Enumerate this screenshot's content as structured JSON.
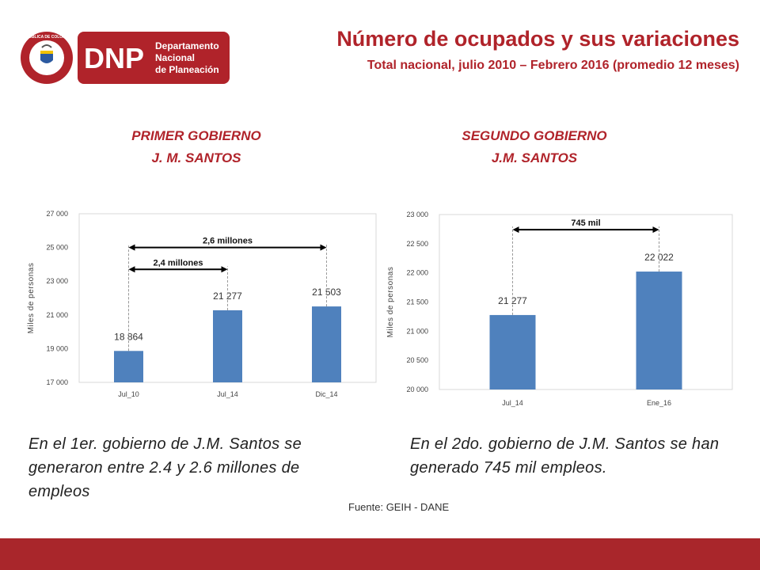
{
  "header": {
    "logo": {
      "seal_text": "REPUBLICA DE COLOMBIA",
      "brand": "DNP",
      "brand_line1": "Departamento",
      "brand_line2": "Nacional",
      "brand_line3": "de Planeación"
    },
    "title": "Número de ocupados y sus variaciones",
    "subtitle": "Total nacional, julio 2010 – Febrero 2016 (promedio 12 meses)"
  },
  "left": {
    "heading_line1": "PRIMER GOBIERNO",
    "heading_line2": "J. M. SANTOS",
    "note": "En el 1er. gobierno de J.M. Santos se generaron entre 2.4 y 2.6 millones de empleos"
  },
  "right": {
    "heading_line1": "SEGUNDO GOBIERNO",
    "heading_line2": "J.M. SANTOS",
    "note": "En el 2do. gobierno de J.M. Santos se han generado 745 mil empleos."
  },
  "source": "Fuente: GEIH - DANE",
  "colors": {
    "accent": "#b0232a",
    "bar": "#4f81bd",
    "footer": "#a9262b"
  },
  "chart_data": [
    {
      "type": "bar",
      "categories": [
        "Jul_10",
        "Jul_14",
        "Dic_14"
      ],
      "values": [
        18864,
        21277,
        21503
      ],
      "data_labels": [
        "18 864",
        "21 277",
        "21 503"
      ],
      "ylabel": "Miles de personas",
      "ylim": [
        17000,
        27000
      ],
      "yticks": [
        17000,
        19000,
        21000,
        23000,
        25000,
        27000
      ],
      "ytick_labels": [
        "17 000",
        "19 000",
        "21 000",
        "23 000",
        "25 000",
        "27 000"
      ],
      "annotations": [
        {
          "text": "2,6 millones",
          "from": 0,
          "to": 2,
          "level": 25000
        },
        {
          "text": "2,4 millones",
          "from": 0,
          "to": 1,
          "level": 23700
        }
      ],
      "grid": false
    },
    {
      "type": "bar",
      "categories": [
        "Jul_14",
        "Ene_16"
      ],
      "values": [
        21277,
        22022
      ],
      "data_labels": [
        "21 277",
        "22 022"
      ],
      "ylabel": "Miles de personas",
      "ylim": [
        20000,
        23000
      ],
      "yticks": [
        20000,
        20500,
        21000,
        21500,
        22000,
        22500,
        23000
      ],
      "ytick_labels": [
        "20 000",
        "20 500",
        "21 000",
        "21 500",
        "22 000",
        "22 500",
        "23 000"
      ],
      "annotations": [
        {
          "text": "745 mil",
          "from": 0,
          "to": 1,
          "level": 22740
        }
      ],
      "grid": false
    }
  ]
}
